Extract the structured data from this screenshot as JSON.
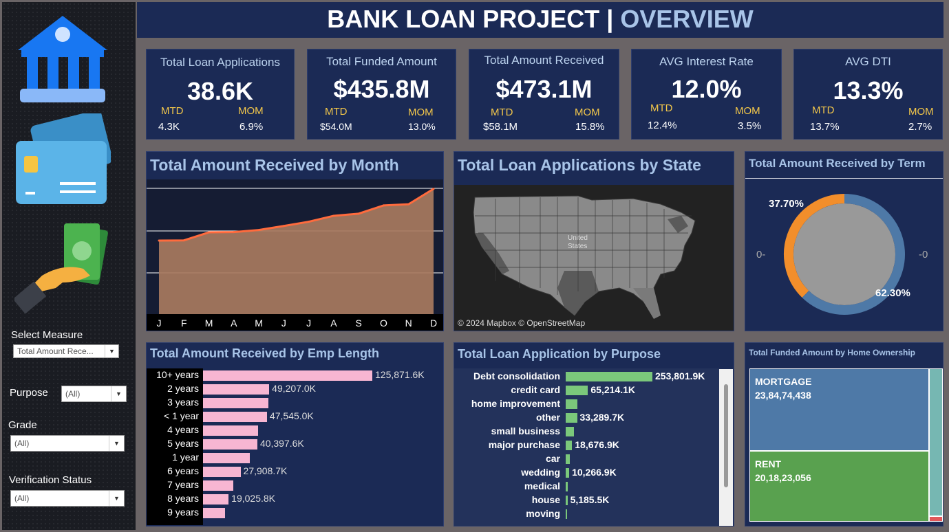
{
  "header": {
    "title_main": "BANK LOAN PROJECT |",
    "title_accent": "OVERVIEW"
  },
  "filters": {
    "measure": {
      "label": "Select Measure",
      "value": "Total Amount Rece..."
    },
    "purpose": {
      "label": "Purpose",
      "value": "(All)"
    },
    "grade": {
      "label": "Grade",
      "value": "(All)"
    },
    "verification": {
      "label": "Verification Status",
      "value": "(All)"
    }
  },
  "kpis": [
    {
      "title": "Total Loan Applications",
      "value": "38.6K",
      "mtd_label": "MTD",
      "mtd": "4.3K",
      "mom_label": "MOM",
      "mom": "6.9%"
    },
    {
      "title": "Total Funded Amount",
      "value": "$435.8M",
      "mtd_label": "MTD",
      "mtd": "$54.0M",
      "mom_label": "MOM",
      "mom": "13.0%"
    },
    {
      "title": "Total Amount Received",
      "value": "$473.1M",
      "mtd_label": "MTD",
      "mtd": "$58.1M",
      "mom_label": "MOM",
      "mom": "15.8%"
    },
    {
      "title": "AVG Interest Rate",
      "value": "12.0%",
      "mtd_label": "MTD",
      "mtd": "12.4%",
      "mom_label": "MOM",
      "mom": "3.5%"
    },
    {
      "title": "AVG DTI",
      "value": "13.3%",
      "mtd_label": "MTD",
      "mtd": "13.7%",
      "mom_label": "MOM",
      "mom": "2.7%"
    }
  ],
  "monthly": {
    "title": "Total Amount Received by Month",
    "months": [
      "J",
      "F",
      "M",
      "A",
      "M",
      "J",
      "J",
      "A",
      "S",
      "O",
      "N",
      "D"
    ],
    "values": [
      31.1,
      31.2,
      34.6,
      34.7,
      35.6,
      37.3,
      39.1,
      41.6,
      42.5,
      46.0,
      46.5,
      53.0
    ],
    "ylim": [
      0,
      57
    ]
  },
  "map": {
    "title": "Total Loan Applications by State",
    "label": "United States",
    "attribution": "© 2024 Mapbox © OpenStreetMap"
  },
  "term": {
    "title": "Total Amount Received by Term",
    "slices": [
      {
        "label": "37.70%",
        "value": 37.7,
        "color": "#f28e2b"
      },
      {
        "label": "62.30%",
        "value": 62.3,
        "color": "#4e79a7"
      }
    ],
    "left_tick": "0-",
    "right_tick": "-0"
  },
  "emp": {
    "title": "Total Amount Received by Emp Length",
    "color": "#f7b6d2",
    "rows": [
      {
        "label": "10+ years",
        "value": 125871.6,
        "text": "125,871.6K"
      },
      {
        "label": "2 years",
        "value": 49207.0,
        "text": "49,207.0K"
      },
      {
        "label": "3 years",
        "value": 48500,
        "text": ""
      },
      {
        "label": "< 1 year",
        "value": 47545.0,
        "text": "47,545.0K"
      },
      {
        "label": "4 years",
        "value": 41000,
        "text": ""
      },
      {
        "label": "5 years",
        "value": 40397.6,
        "text": "40,397.6K"
      },
      {
        "label": "1 year",
        "value": 35000,
        "text": ""
      },
      {
        "label": "6 years",
        "value": 27908.7,
        "text": "27,908.7K"
      },
      {
        "label": "7 years",
        "value": 22500,
        "text": ""
      },
      {
        "label": "8 years",
        "value": 19025.8,
        "text": "19,025.8K"
      },
      {
        "label": "9 years",
        "value": 16500,
        "text": ""
      }
    ]
  },
  "purpose": {
    "title": "Total Loan Application by Purpose",
    "color": "#7bc87b",
    "rows": [
      {
        "label": "Debt consolidation",
        "value": 253801.9,
        "text": "253,801.9K"
      },
      {
        "label": "credit card",
        "value": 65214.1,
        "text": "65,214.1K"
      },
      {
        "label": "home improvement",
        "value": 33500,
        "text": ""
      },
      {
        "label": "other",
        "value": 33289.7,
        "text": "33,289.7K"
      },
      {
        "label": "small business",
        "value": 24000,
        "text": ""
      },
      {
        "label": "major purchase",
        "value": 18676.9,
        "text": "18,676.9K"
      },
      {
        "label": "car",
        "value": 12000,
        "text": ""
      },
      {
        "label": "wedding",
        "value": 10266.9,
        "text": "10,266.9K"
      },
      {
        "label": "medical",
        "value": 6000,
        "text": ""
      },
      {
        "label": "house",
        "value": 5185.5,
        "text": "5,185.5K"
      },
      {
        "label": "moving",
        "value": 4000,
        "text": ""
      }
    ]
  },
  "home": {
    "title": "Total Funded Amount by Home Ownership",
    "blocks": [
      {
        "label": "MORTGAGE",
        "value": "23,84,74,438",
        "color": "#4e79a7"
      },
      {
        "label": "RENT",
        "value": "20,18,23,056",
        "color": "#59a14f"
      }
    ],
    "side_color": "#76b7b2",
    "small_color": "#e15759"
  }
}
